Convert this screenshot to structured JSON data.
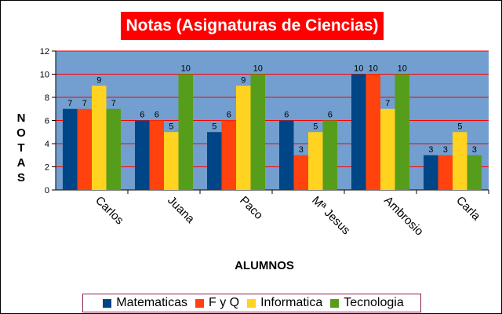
{
  "chart_data": {
    "type": "bar",
    "title": "Notas (Asignaturas de Ciencias)",
    "xlabel": "ALUMNOS",
    "ylabel": "NOTAS",
    "ylim": [
      0,
      12
    ],
    "yticks": [
      0,
      2,
      4,
      6,
      8,
      10,
      12
    ],
    "grid": true,
    "legend_position": "bottom",
    "categories": [
      "Carlos",
      "Juana",
      "Paco",
      "Mª Jesus",
      "Ambrosio",
      "Carla"
    ],
    "series": [
      {
        "name": "Matematicas",
        "color": "#004586",
        "values": [
          7,
          6,
          5,
          6,
          10,
          3
        ]
      },
      {
        "name": "F y Q",
        "color": "#ff420e",
        "values": [
          7,
          6,
          6,
          3,
          10,
          3
        ]
      },
      {
        "name": "Informatica",
        "color": "#ffd320",
        "values": [
          9,
          5,
          9,
          5,
          7,
          5
        ]
      },
      {
        "name": "Tecnologia",
        "color": "#579d1c",
        "values": [
          7,
          10,
          10,
          6,
          10,
          3
        ]
      }
    ],
    "colors": {
      "plot_background": "#729fcf",
      "gridline": "#ff0000",
      "title_background": "#ff0000"
    }
  }
}
